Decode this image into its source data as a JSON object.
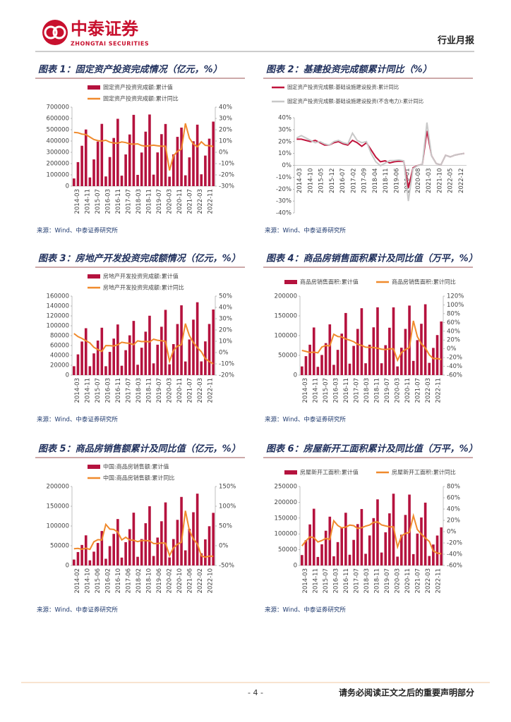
{
  "header": {
    "logo_cn": "中泰证券",
    "logo_en": "ZHONGTAI SECURITIES",
    "doc_type": "行业月报"
  },
  "footer": {
    "page": "- 4 -",
    "notice": "请务必阅读正文之后的重要声明部分"
  },
  "chart_data": [
    {
      "type": "bar",
      "title": "图表 1：固定资产投资完成情况（亿元，%）",
      "source": "来源：Wind、中泰证券研究所",
      "x_labels": [
        "2014-03",
        "2014-11",
        "2015-07",
        "2016-03",
        "2016-11",
        "2017-07",
        "2018-03",
        "2018-11",
        "2019-07",
        "2020-03",
        "2020-11",
        "2021-07",
        "2022-03",
        "2022-11"
      ],
      "ylim": [
        0,
        700000
      ],
      "yticks": [
        0,
        100000,
        200000,
        300000,
        400000,
        500000,
        600000,
        700000
      ],
      "y2lim": [
        -30,
        40
      ],
      "y2ticks": [
        {
          "value": -30,
          "label": "-30%"
        },
        {
          "value": -20,
          "label": "-20%"
        },
        {
          "value": -10,
          "label": "-10%"
        },
        {
          "value": 0,
          "label": "0%"
        },
        {
          "value": 10,
          "label": "10%"
        },
        {
          "value": 20,
          "label": "20%"
        },
        {
          "value": 30,
          "label": "30%"
        },
        {
          "value": 40,
          "label": "40%"
        }
      ],
      "series": [
        {
          "name": "固定资产投资完成额:累计值",
          "type": "bar",
          "color": "#b5123e",
          "values": [
            68000,
            213000,
            358000,
            502000,
            77000,
            237000,
            395000,
            552000,
            86000,
            258000,
            427000,
            597000,
            93000,
            281000,
            458000,
            632000,
            100000,
            298000,
            483000,
            635000,
            102000,
            299000,
            461000,
            551000,
            84000,
            282000,
            437000,
            519000,
            96000,
            255000,
            398000,
            545000,
            105000,
            271000,
            421000,
            572000
          ]
        },
        {
          "name": "固定资产投资完成额:累计同比",
          "type": "line",
          "axis": "y2",
          "color": "#f08a2c",
          "values": [
            17.6,
            17.3,
            16.1,
            15.7,
            13.5,
            11.4,
            10.3,
            10,
            10.7,
            9,
            8.2,
            8.1,
            9.2,
            8.6,
            7.5,
            7.2,
            7.5,
            6,
            5.4,
            5.9,
            6.3,
            5.8,
            5.4,
            5.4,
            -16.1,
            -3.1,
            0.8,
            2.9,
            25.6,
            12.6,
            7.3,
            4.9,
            9.3,
            6.1,
            5.9,
            5.1
          ]
        }
      ]
    },
    {
      "type": "line",
      "title": "图表 2：基建投资完成额累计同比（%）",
      "source": "来源：Wind、中泰证券研究所",
      "x_labels": [
        "2014-03",
        "2014-10",
        "2015-05",
        "2015-12",
        "2016-07",
        "2017-02",
        "2017-09",
        "2018-04",
        "2018-11",
        "2019-06",
        "2020-01",
        "2020-08",
        "2021-03",
        "2021-10",
        "2022-05",
        "2022-12"
      ],
      "ylim": [
        -40,
        40
      ],
      "yticks": [
        {
          "value": -40,
          "label": "-40%"
        },
        {
          "value": -30,
          "label": "-30%"
        },
        {
          "value": -20,
          "label": "-20%"
        },
        {
          "value": -10,
          "label": "-10%"
        },
        {
          "value": 0,
          "label": "0%"
        },
        {
          "value": 10,
          "label": "10%"
        },
        {
          "value": 20,
          "label": "20%"
        },
        {
          "value": 30,
          "label": "30%"
        },
        {
          "value": 40,
          "label": "40%"
        }
      ],
      "series": [
        {
          "name": "固定资产投资完成额:基础设施建设投资:累计同比",
          "type": "line",
          "color": "#c0143c",
          "values": [
            22,
            22,
            21,
            20,
            21,
            19,
            17,
            17,
            19,
            20,
            18,
            17,
            21,
            19,
            16,
            19,
            13,
            7,
            3,
            3.8,
            2,
            3,
            3.5,
            3.3,
            -19,
            -2,
            -0.2,
            0.9,
            29,
            8,
            1.5,
            0.4,
            8.5,
            7.1,
            8.6,
            9.4,
            10
          ]
        },
        {
          "name": "固定资产投资完成额:基础设施建设投资(不含电力):累计同比",
          "type": "line",
          "color": "#c8c8c8",
          "values": [
            23,
            25,
            23,
            21,
            19,
            20,
            18,
            17,
            20,
            21,
            19,
            18,
            27,
            21,
            19,
            20,
            10,
            3,
            -0.3,
            1.8,
            4,
            4.1,
            4.5,
            3.8,
            -30,
            -2.7,
            -0.3,
            0.9,
            36,
            7.8,
            1.5,
            0.4,
            8.5,
            7.1,
            8.6,
            9.4,
            10
          ]
        }
      ]
    },
    {
      "type": "bar",
      "title": "图表 3：房地产开发投资完成额情况（亿元，%）",
      "source": "来源：Wind、中泰证券研究所",
      "x_labels": [
        "2014-03",
        "2014-11",
        "2015-07",
        "2016-03",
        "2016-11",
        "2017-07",
        "2018-03",
        "2018-11",
        "2019-07",
        "2020-03",
        "2020-11",
        "2021-07",
        "2022-03",
        "2022-11"
      ],
      "ylim": [
        0,
        160000
      ],
      "yticks": [
        0,
        20000,
        40000,
        60000,
        80000,
        100000,
        120000,
        140000,
        160000
      ],
      "y2lim": [
        -20,
        50
      ],
      "y2ticks": [
        {
          "value": -20,
          "label": "-20%"
        },
        {
          "value": -10,
          "label": "-10%"
        },
        {
          "value": 0,
          "label": "0%"
        },
        {
          "value": 10,
          "label": "10%"
        },
        {
          "value": 20,
          "label": "20%"
        },
        {
          "value": 30,
          "label": "30%"
        },
        {
          "value": 40,
          "label": "40%"
        },
        {
          "value": 50,
          "label": "50%"
        }
      ],
      "series": [
        {
          "name": "房地产开发投资完成额:累计值",
          "type": "bar",
          "color": "#b5123e",
          "values": [
            18000,
            42000,
            68000,
            95000,
            18000,
            44000,
            70000,
            96000,
            18000,
            47000,
            74000,
            102600,
            19000,
            50500,
            80600,
            109800,
            21000,
            55500,
            88000,
            120300,
            23800,
            61600,
            98000,
            132200,
            21900,
            62800,
            103500,
            141400,
            27600,
            72200,
            112400,
            147600,
            27800,
            68300,
            103600,
            132900
          ]
        },
        {
          "name": "房地产开发投资完成额:累计同比",
          "type": "line",
          "axis": "y2",
          "color": "#f08a2c",
          "values": [
            16.8,
            14.1,
            12.5,
            10.5,
            8.5,
            4.6,
            2.6,
            1,
            6.2,
            6.1,
            5.8,
            6.9,
            9.1,
            8.5,
            8.1,
            7,
            10.4,
            9.7,
            9.9,
            9.5,
            11.8,
            10.9,
            10.5,
            9.9,
            -7.7,
            1.9,
            5.6,
            7,
            25.6,
            15,
            8.8,
            4.4,
            0.7,
            -5.4,
            -8,
            -10
          ]
        }
      ]
    },
    {
      "type": "bar",
      "title": "图表 4：商品房销售面积累计及同比值（万平，%）",
      "source": "来源：Wind、中泰证券研究所",
      "x_labels": [
        "2014-03",
        "2014-11",
        "2015-07",
        "2016-03",
        "2016-11",
        "2017-07",
        "2018-03",
        "2018-11",
        "2019-07",
        "2020-03",
        "2020-11",
        "2021-07",
        "2022-03",
        "2022-11"
      ],
      "ylim": [
        0,
        200000
      ],
      "yticks": [
        0,
        50000,
        100000,
        150000,
        200000
      ],
      "y2lim": [
        -60,
        120
      ],
      "y2ticks": [
        {
          "value": -60,
          "label": "-60%"
        },
        {
          "value": -40,
          "label": "-40%"
        },
        {
          "value": -20,
          "label": "-20%"
        },
        {
          "value": 0,
          "label": "0%"
        },
        {
          "value": 20,
          "label": "20%"
        },
        {
          "value": 40,
          "label": "40%"
        },
        {
          "value": 60,
          "label": "60%"
        },
        {
          "value": 80,
          "label": "80%"
        },
        {
          "value": 100,
          "label": "100%"
        },
        {
          "value": 120,
          "label": "120%"
        }
      ],
      "series": [
        {
          "name": "商品房销售面积:累计值",
          "type": "bar",
          "color": "#b5123e",
          "values": [
            22000,
            48000,
            77000,
            120600,
            21000,
            51000,
            81000,
            128500,
            26000,
            64000,
            105000,
            157300,
            29000,
            74000,
            117000,
            169400,
            30000,
            77000,
            121000,
            171700,
            30000,
            75800,
            120000,
            171600,
            22000,
            69400,
            117000,
            176100,
            36000,
            88600,
            130000,
            179400,
            31000,
            68900,
            101400,
            135800
          ]
        },
        {
          "name": "商品房销售面积:累计同比",
          "type": "line",
          "axis": "y2",
          "color": "#f08a2c",
          "values": [
            -3.8,
            -6,
            -8.6,
            -7.6,
            -9.2,
            3.9,
            7.5,
            6.5,
            33.1,
            27.9,
            26.9,
            22.5,
            19.5,
            16.1,
            10.3,
            7.7,
            3.6,
            3.3,
            2.9,
            1.3,
            -0.9,
            -1.8,
            -0.1,
            -0.1,
            -26.3,
            -8.4,
            -1.8,
            2.6,
            63.8,
            27.7,
            11.3,
            1.9,
            -13.8,
            -22.2,
            -22.2,
            -24.3
          ]
        }
      ]
    },
    {
      "type": "bar",
      "title": "图表 5：商品房销售额累计及同比值（亿元，%）",
      "source": "来源：Wind、中泰证券研究所",
      "x_labels": [
        "2014-02",
        "2014-10",
        "2015-06",
        "2016-02",
        "2016-10",
        "2017-06",
        "2018-02",
        "2018-10",
        "2019-06",
        "2020-02",
        "2020-10",
        "2021-06",
        "2022-02",
        "2022-10"
      ],
      "ylim": [
        0,
        200000
      ],
      "yticks": [
        0,
        50000,
        100000,
        150000,
        200000
      ],
      "y2lim": [
        -50,
        150
      ],
      "y2ticks": [
        {
          "value": -50,
          "label": "-50%"
        },
        {
          "value": 0,
          "label": "0%"
        },
        {
          "value": 50,
          "label": "50%"
        },
        {
          "value": 100,
          "label": "100%"
        },
        {
          "value": 150,
          "label": "150%"
        }
      ],
      "series": [
        {
          "name": "中国:商品房销售额:累计值",
          "type": "bar",
          "color": "#b5123e",
          "values": [
            15000,
            34000,
            52000,
            76300,
            13000,
            35000,
            57000,
            87300,
            17000,
            49000,
            80000,
            117600,
            20000,
            59000,
            92000,
            133700,
            22000,
            67000,
            107000,
            150000,
            24000,
            70700,
            112000,
            159700,
            20400,
            66900,
            115600,
            173600,
            38300,
            92900,
            134800,
            181900,
            31000,
            66100,
            99400,
            133300
          ]
        },
        {
          "name": "中国:商品房销售额:累计同比",
          "type": "line",
          "axis": "y2",
          "color": "#f08a2c",
          "values": [
            -7.7,
            -6.7,
            -8.9,
            -6.3,
            -9.3,
            10,
            15.3,
            14.4,
            54.1,
            42.1,
            41.3,
            34.8,
            14.7,
            21.5,
            14.6,
            13.7,
            10.4,
            13.2,
            13.3,
            12.2,
            5.6,
            5.6,
            7.1,
            6.5,
            -24.7,
            -5.4,
            3.7,
            8.7,
            88.5,
            38.9,
            16.6,
            4.8,
            -25.6,
            -28.9,
            -26.3,
            -26.7
          ]
        }
      ]
    },
    {
      "type": "bar",
      "title": "图表 6：房屋新开工面积累计及同比值（万平，%）",
      "source": "来源：Wind、中泰证券研究所",
      "x_labels": [
        "2014-03",
        "2014-11",
        "2015-07",
        "2016-03",
        "2016-11",
        "2017-07",
        "2018-03",
        "2018-11",
        "2019-07",
        "2020-03",
        "2020-11",
        "2021-07",
        "2022-03",
        "2022-11"
      ],
      "ylim": [
        0,
        250000
      ],
      "yticks": [
        0,
        50000,
        100000,
        150000,
        200000,
        250000
      ],
      "y2lim": [
        -60,
        80
      ],
      "y2ticks": [
        {
          "value": -60,
          "label": "-60%"
        },
        {
          "value": -40,
          "label": "-40%"
        },
        {
          "value": -20,
          "label": "-20%"
        },
        {
          "value": 0,
          "label": "0%"
        },
        {
          "value": 20,
          "label": "20%"
        },
        {
          "value": 40,
          "label": "40%"
        },
        {
          "value": 60,
          "label": "60%"
        },
        {
          "value": 80,
          "label": "80%"
        }
      ],
      "series": [
        {
          "name": "房屋新开工面积:累计值",
          "type": "bar",
          "color": "#b5123e",
          "values": [
            33000,
            80000,
            130000,
            179600,
            27000,
            67000,
            110000,
            154500,
            29000,
            74000,
            120000,
            166900,
            34000,
            81000,
            131000,
            178700,
            37000,
            95000,
            150000,
            209300,
            41000,
            105000,
            165000,
            227200,
            28000,
            97500,
            160000,
            224400,
            36000,
            101000,
            152000,
            198900,
            30000,
            66400,
            94800,
            120600
          ]
        },
        {
          "name": "房屋新开工面积:累计同比",
          "type": "line",
          "axis": "y2",
          "color": "#f08a2c",
          "values": [
            -25.2,
            -16.4,
            -9.3,
            -10.7,
            -18.4,
            -15.8,
            -12,
            -14,
            19.2,
            10.8,
            6.6,
            8.1,
            11.6,
            10.6,
            5.6,
            7,
            9.7,
            11.8,
            16.4,
            17.2,
            11.9,
            10.1,
            8.6,
            8.5,
            -27.2,
            -7.6,
            -3.4,
            -1.2,
            28.2,
            3.8,
            -4.5,
            -11.4,
            -17.5,
            -34.4,
            -38,
            -39.4
          ]
        }
      ]
    }
  ]
}
